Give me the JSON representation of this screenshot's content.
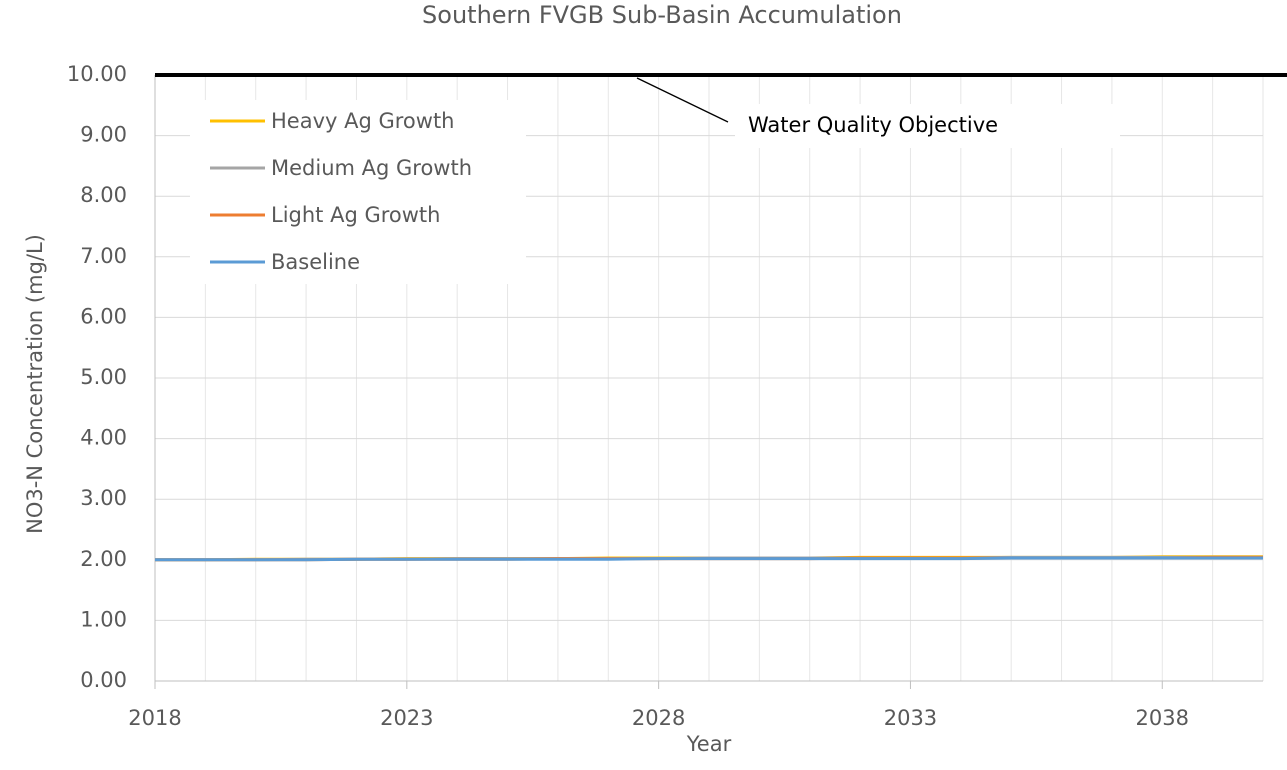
{
  "chart_data": {
    "type": "line",
    "title": "Southern FVGB Sub-Basin Accumulation",
    "x_label": "Year",
    "y_label": "NO3-N Concentration (mg/L)",
    "x": [
      2018,
      2019,
      2020,
      2021,
      2022,
      2023,
      2024,
      2025,
      2026,
      2027,
      2028,
      2029,
      2030,
      2031,
      2032,
      2033,
      2034,
      2035,
      2036,
      2037,
      2038,
      2039,
      2040
    ],
    "series": [
      {
        "name": "Heavy Ag Growth",
        "color": "#ffc000",
        "values": [
          2.0,
          2.0,
          2.01,
          2.01,
          2.01,
          2.02,
          2.02,
          2.02,
          2.02,
          2.03,
          2.03,
          2.03,
          2.03,
          2.03,
          2.04,
          2.04,
          2.04,
          2.04,
          2.04,
          2.04,
          2.05,
          2.05,
          2.05
        ]
      },
      {
        "name": "Medium Ag Growth",
        "color": "#a5a5a5",
        "values": [
          2.0,
          2.0,
          2.0,
          2.01,
          2.01,
          2.01,
          2.02,
          2.02,
          2.02,
          2.02,
          2.02,
          2.03,
          2.03,
          2.03,
          2.03,
          2.03,
          2.03,
          2.04,
          2.04,
          2.04,
          2.04,
          2.04,
          2.04
        ]
      },
      {
        "name": "Light Ag Growth",
        "color": "#ed7d31",
        "values": [
          2.0,
          2.0,
          2.0,
          2.0,
          2.01,
          2.01,
          2.01,
          2.01,
          2.02,
          2.02,
          2.02,
          2.02,
          2.02,
          2.02,
          2.03,
          2.03,
          2.03,
          2.03,
          2.03,
          2.03,
          2.03,
          2.04,
          2.04
        ]
      },
      {
        "name": "Baseline",
        "color": "#5b9bd5",
        "values": [
          2.0,
          2.0,
          2.0,
          2.0,
          2.01,
          2.01,
          2.01,
          2.01,
          2.01,
          2.01,
          2.02,
          2.02,
          2.02,
          2.02,
          2.02,
          2.02,
          2.02,
          2.03,
          2.03,
          2.03,
          2.03,
          2.03,
          2.03
        ]
      }
    ],
    "objective": {
      "value": 10,
      "label": "Water Quality Objective",
      "color": "#000000"
    },
    "xlim": [
      2018,
      2040
    ],
    "xticks": [
      2018,
      2023,
      2028,
      2033,
      2038
    ],
    "minor_xticks": [
      2018,
      2019,
      2020,
      2021,
      2022,
      2023,
      2024,
      2025,
      2026,
      2027,
      2028,
      2029,
      2030,
      2031,
      2032,
      2033,
      2034,
      2035,
      2036,
      2037,
      2038,
      2039,
      2040
    ],
    "ylim": [
      0,
      10
    ],
    "yticks": [
      {
        "value": 0,
        "label": "0.00"
      },
      {
        "value": 1,
        "label": "1.00"
      },
      {
        "value": 2,
        "label": "2.00"
      },
      {
        "value": 3,
        "label": "3.00"
      },
      {
        "value": 4,
        "label": "4.00"
      },
      {
        "value": 5,
        "label": "5.00"
      },
      {
        "value": 6,
        "label": "6.00"
      },
      {
        "value": 7,
        "label": "7.00"
      },
      {
        "value": 8,
        "label": "8.00"
      },
      {
        "value": 9,
        "label": "9.00"
      },
      {
        "value": 10,
        "label": "10.00"
      }
    ],
    "grid": true,
    "legend": "upper left"
  }
}
